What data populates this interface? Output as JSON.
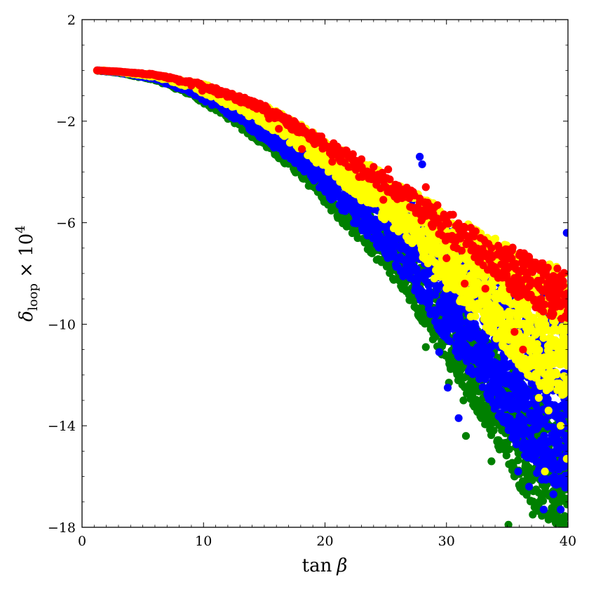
{
  "chart_data": {
    "type": "scatter",
    "xlabel": {
      "main": "tan",
      "symbol": "β"
    },
    "ylabel": {
      "symbol": "δ",
      "subscript": "loop",
      "times": " × 10",
      "power": "4"
    },
    "xlim": [
      0,
      40
    ],
    "ylim": [
      -18,
      2
    ],
    "x_ticks": [
      0,
      10,
      20,
      30,
      40
    ],
    "y_ticks": [
      2,
      -2,
      -6,
      -10,
      -14,
      -18
    ],
    "x_minor_step": 1,
    "y_minor_step": 1,
    "grid": false,
    "legend": "none",
    "envelope": {
      "upper": [
        [
          1.2,
          0.0
        ],
        [
          3,
          -0.04
        ],
        [
          6,
          -0.14
        ],
        [
          10,
          -0.5
        ],
        [
          15,
          -1.3
        ],
        [
          20,
          -2.6
        ],
        [
          25,
          -4.0
        ],
        [
          30,
          -5.4
        ],
        [
          35,
          -6.7
        ],
        [
          40,
          -7.7
        ]
      ],
      "lower": [
        [
          1.2,
          0.0
        ],
        [
          3,
          -0.1
        ],
        [
          6,
          -0.4
        ],
        [
          9,
          -1.0
        ],
        [
          12,
          -1.9
        ],
        [
          15,
          -3.0
        ],
        [
          18,
          -4.2
        ],
        [
          21,
          -5.8
        ],
        [
          24,
          -7.3
        ],
        [
          27,
          -9.1
        ],
        [
          30,
          -11.6
        ],
        [
          33,
          -13.8
        ],
        [
          36,
          -16.4
        ],
        [
          38,
          -17.9
        ],
        [
          40,
          -18.0
        ]
      ]
    },
    "series": [
      {
        "color": "#008000",
        "band": [
          0.55,
          1.0
        ],
        "density": 1.6,
        "points": [
          [
            1.3,
            -0.02
          ],
          [
            1.6,
            -0.03
          ],
          [
            2.0,
            -0.05
          ],
          [
            2.5,
            -0.06
          ],
          [
            8.6,
            -0.9
          ],
          [
            12.5,
            -1.8
          ],
          [
            14.2,
            -2.3
          ],
          [
            16.7,
            -3.2
          ],
          [
            18.5,
            -3.5
          ],
          [
            20.5,
            -5.2
          ],
          [
            24.0,
            -6.5
          ],
          [
            26.4,
            -7.6
          ],
          [
            27.1,
            -9.0
          ],
          [
            28.3,
            -10.9
          ],
          [
            30.2,
            -12.3
          ],
          [
            31.4,
            -13.0
          ],
          [
            31.6,
            -14.4
          ],
          [
            33.7,
            -15.4
          ],
          [
            35.6,
            -16.0
          ],
          [
            37.1,
            -17.5
          ],
          [
            38.4,
            -17.7
          ],
          [
            35.1,
            -17.9
          ]
        ]
      },
      {
        "color": "#0000ff",
        "band": [
          0.1,
          0.85
        ],
        "density": 2.6,
        "points": [
          [
            1.4,
            0.0
          ],
          [
            2.0,
            -0.02
          ],
          [
            9.5,
            -1.0
          ],
          [
            14.6,
            -2.4
          ],
          [
            22.2,
            -4.4
          ],
          [
            25.1,
            -5.7
          ],
          [
            27.8,
            -3.4
          ],
          [
            28.0,
            -3.7
          ],
          [
            28.5,
            -9.0
          ],
          [
            29.4,
            -11.1
          ],
          [
            30.1,
            -12.5
          ],
          [
            31.0,
            -13.7
          ],
          [
            35.9,
            -15.8
          ],
          [
            38.0,
            -17.3
          ],
          [
            39.4,
            -17.3
          ],
          [
            39.9,
            -6.4
          ],
          [
            40.0,
            -14.8
          ],
          [
            38.8,
            -16.7
          ],
          [
            36.8,
            -16.4
          ]
        ]
      },
      {
        "color": "#ffff00",
        "band": [
          0.02,
          0.5
        ],
        "density": 1.9,
        "points": [
          [
            1.8,
            0.0
          ],
          [
            2.2,
            -0.03
          ],
          [
            3.0,
            -0.05
          ],
          [
            4.0,
            -0.1
          ],
          [
            5.0,
            -0.16
          ],
          [
            6.2,
            -0.25
          ],
          [
            9.2,
            -0.6
          ],
          [
            12.0,
            -1.1
          ],
          [
            14.5,
            -1.6
          ],
          [
            16.6,
            -2.1
          ],
          [
            18.3,
            -2.7
          ],
          [
            19.5,
            -3.1
          ],
          [
            21.0,
            -3.8
          ],
          [
            22.4,
            -4.1
          ],
          [
            23.5,
            -5.2
          ],
          [
            24.7,
            -4.7
          ],
          [
            25.8,
            -5.6
          ],
          [
            26.6,
            -6.0
          ],
          [
            27.5,
            -6.5
          ],
          [
            28.2,
            -7.3
          ],
          [
            29.0,
            -8.2
          ],
          [
            30.0,
            -8.6
          ],
          [
            31.1,
            -9.1
          ],
          [
            32.0,
            -9.7
          ],
          [
            33.5,
            -10.2
          ],
          [
            34.6,
            -10.8
          ],
          [
            35.7,
            -11.4
          ],
          [
            36.7,
            -12.0
          ],
          [
            37.6,
            -12.9
          ],
          [
            38.4,
            -13.4
          ],
          [
            39.4,
            -14.0
          ],
          [
            39.9,
            -15.3
          ],
          [
            38.1,
            -15.8
          ]
        ]
      },
      {
        "color": "#ff0000",
        "band": [
          0.02,
          0.22
        ],
        "density": 0.55,
        "points": [
          [
            2.4,
            -0.04
          ],
          [
            2.9,
            -0.05
          ],
          [
            3.5,
            -0.07
          ],
          [
            4.2,
            -0.1
          ],
          [
            5.0,
            -0.15
          ],
          [
            5.6,
            -0.17
          ],
          [
            6.2,
            -0.22
          ],
          [
            6.8,
            -0.27
          ],
          [
            8.0,
            -0.45
          ],
          [
            9.0,
            -0.6
          ],
          [
            9.9,
            -0.8
          ],
          [
            11.2,
            -0.95
          ],
          [
            12.6,
            -1.05
          ],
          [
            13.5,
            -1.2
          ],
          [
            14.4,
            -1.4
          ],
          [
            15.1,
            -1.6
          ],
          [
            15.4,
            -1.9
          ],
          [
            16.6,
            -1.95
          ],
          [
            17.6,
            -2.3
          ],
          [
            18.4,
            -2.4
          ],
          [
            19.5,
            -2.6
          ],
          [
            21.0,
            -3.0
          ],
          [
            21.6,
            -3.3
          ],
          [
            22.3,
            -3.3
          ],
          [
            23.0,
            -3.5
          ],
          [
            24.0,
            -3.8
          ],
          [
            25.2,
            -3.9
          ],
          [
            25.8,
            -4.5
          ],
          [
            26.4,
            -4.9
          ],
          [
            27.8,
            -5.2
          ],
          [
            29.0,
            -5.4
          ],
          [
            29.7,
            -5.8
          ],
          [
            31.3,
            -6.3
          ],
          [
            32.0,
            -6.2
          ],
          [
            32.8,
            -6.6
          ],
          [
            33.7,
            -7.0
          ],
          [
            34.6,
            -7.3
          ],
          [
            35.4,
            -7.1
          ],
          [
            36.4,
            -7.5
          ],
          [
            37.3,
            -7.7
          ],
          [
            38.2,
            -7.9
          ],
          [
            38.8,
            -8.1
          ],
          [
            39.6,
            -8.3
          ],
          [
            24.8,
            -5.1
          ],
          [
            30.0,
            -7.4
          ],
          [
            31.5,
            -8.4
          ],
          [
            33.2,
            -8.6
          ],
          [
            36.2,
            -8.8
          ],
          [
            37.8,
            -9.0
          ],
          [
            39.0,
            -9.3
          ],
          [
            35.6,
            -10.3
          ],
          [
            36.3,
            -11.0
          ],
          [
            28.3,
            -4.6
          ],
          [
            22.8,
            -4.2
          ],
          [
            20.6,
            -3.6
          ],
          [
            18.1,
            -3.1
          ],
          [
            16.2,
            -2.3
          ]
        ]
      }
    ]
  }
}
